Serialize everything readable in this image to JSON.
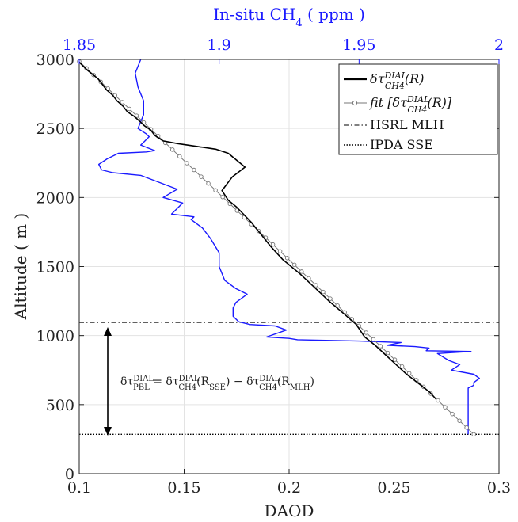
{
  "chart_data": {
    "type": "line",
    "xlabel": "DAOD",
    "ylabel": "Altitude ( m )",
    "top_xlabel": "In-situ CH",
    "top_xlabel_sub": "4",
    "top_xlabel_unit": " ( ppm )",
    "xlim": [
      0.1,
      0.3
    ],
    "ylim": [
      0,
      3000
    ],
    "top_xlim": [
      1.85,
      2.0
    ],
    "x_ticks": [
      "0.1",
      "0.15",
      "0.2",
      "0.25",
      "0.3"
    ],
    "y_ticks": [
      "0",
      "500",
      "1000",
      "1500",
      "2000",
      "2500",
      "3000"
    ],
    "top_ticks": [
      "1.85",
      "1.9",
      "1.95",
      "2"
    ],
    "grid": true,
    "legend_position": "top-right",
    "colors": {
      "dial": "#000000",
      "fit": "#777777",
      "insitu": "#1a1aff",
      "axis": "#222222"
    },
    "legend": [
      {
        "label": "δτ",
        "sup": "DIAL",
        "sub": "CH4",
        "suffix": "(R)"
      },
      {
        "label": "fit [δτ",
        "sup": "DIAL",
        "sub": "CH4",
        "suffix": "(R)]"
      },
      {
        "label": "HSRL MLH"
      },
      {
        "label": "IPDA SSE"
      }
    ],
    "annotation": {
      "text": "δτ_PBL^DIAL = δτ_CH4^DIAL(R_SSE) − δτ_CH4^DIAL(R_MLH)"
    },
    "hlines": {
      "hsrl_mlh": 1095,
      "ipda_sse": 285
    },
    "series": [
      {
        "name": "δτ CH4 DIAL (R)",
        "x": [
          0.1,
          0.104,
          0.109,
          0.111,
          0.113,
          0.116,
          0.118,
          0.121,
          0.123,
          0.126,
          0.129,
          0.131,
          0.134,
          0.136,
          0.14,
          0.147,
          0.156,
          0.165,
          0.171,
          0.175,
          0.179,
          0.173,
          0.168,
          0.171,
          0.175,
          0.182,
          0.191,
          0.197,
          0.205,
          0.212,
          0.219,
          0.226,
          0.232,
          0.236,
          0.241,
          0.246,
          0.251,
          0.256,
          0.262,
          0.267,
          0.27
        ],
        "y": [
          2980,
          2920,
          2860,
          2820,
          2780,
          2740,
          2700,
          2660,
          2620,
          2590,
          2550,
          2520,
          2490,
          2450,
          2410,
          2390,
          2370,
          2350,
          2320,
          2270,
          2220,
          2150,
          2050,
          1980,
          1930,
          1820,
          1650,
          1550,
          1450,
          1350,
          1250,
          1160,
          1080,
          990,
          930,
          860,
          790,
          720,
          650,
          590,
          540
        ]
      },
      {
        "name": "fit [δτ CH4 DIAL (R)]",
        "x": [
          0.1,
          0.288
        ],
        "y": [
          2985,
          285
        ],
        "markers": 55
      },
      {
        "name": "In-situ CH4 (ppm)",
        "x_units": "ppm",
        "x": [
          1.872,
          1.87,
          1.871,
          1.873,
          1.873,
          1.871,
          1.874,
          1.875,
          1.873,
          1.872,
          1.877,
          1.874,
          1.864,
          1.86,
          1.857,
          1.858,
          1.862,
          1.872,
          1.885,
          1.88,
          1.887,
          1.883,
          1.891,
          1.89,
          1.894,
          1.897,
          1.9,
          1.9,
          1.902,
          1.906,
          1.91,
          1.906,
          1.905,
          1.905,
          1.907,
          1.911,
          1.92,
          1.924,
          1.917,
          1.925,
          1.928,
          1.95,
          1.965,
          1.96,
          1.97,
          1.975,
          1.974,
          1.99,
          1.978,
          1.982,
          1.986,
          1.983,
          1.991,
          1.993,
          1.991,
          1.991,
          1.989,
          1.989,
          1.989
        ],
        "y": [
          3000,
          2900,
          2800,
          2700,
          2600,
          2500,
          2460,
          2440,
          2400,
          2380,
          2340,
          2330,
          2320,
          2280,
          2240,
          2200,
          2180,
          2160,
          2060,
          2000,
          1960,
          1880,
          1860,
          1840,
          1780,
          1700,
          1600,
          1500,
          1400,
          1340,
          1300,
          1240,
          1200,
          1140,
          1100,
          1080,
          1070,
          1040,
          990,
          980,
          970,
          960,
          950,
          930,
          920,
          910,
          890,
          885,
          870,
          820,
          790,
          750,
          720,
          690,
          660,
          640,
          620,
          500,
          285
        ]
      }
    ]
  }
}
